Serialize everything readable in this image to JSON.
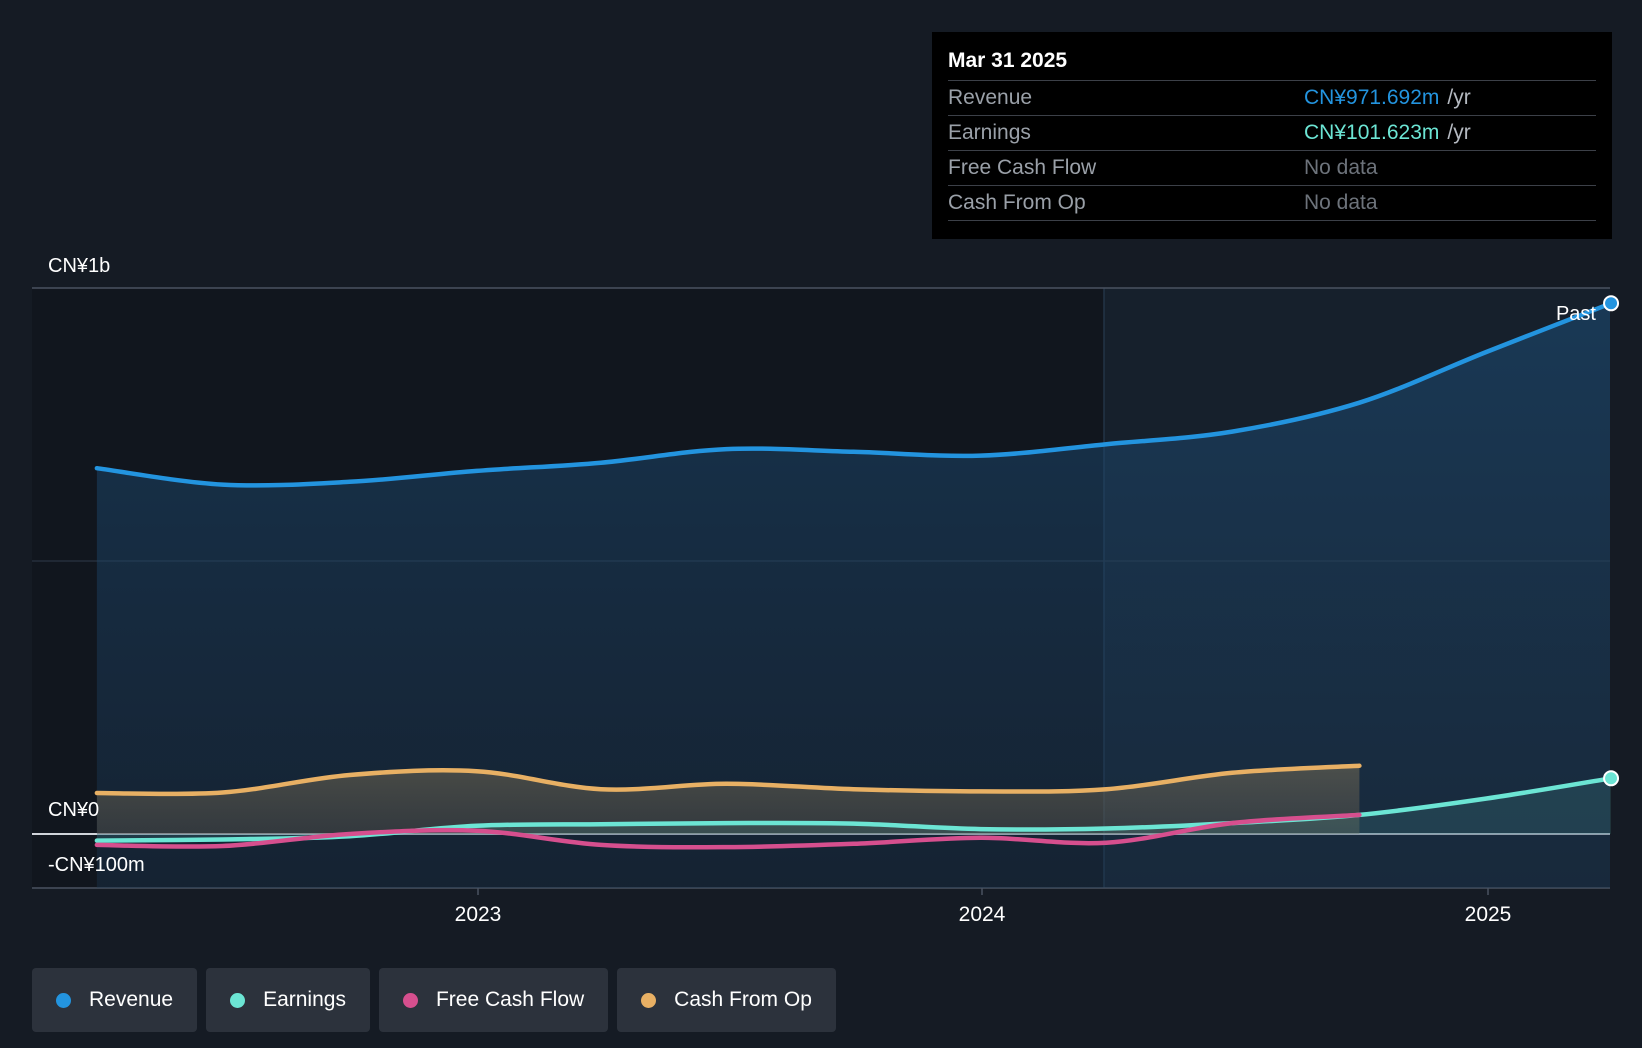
{
  "tooltip": {
    "date": "Mar 31 2025",
    "rows": [
      {
        "name": "Revenue",
        "value": "CN¥971.692m",
        "unit": "/yr",
        "color": "#2394df"
      },
      {
        "name": "Earnings",
        "value": "CN¥101.623m",
        "unit": "/yr",
        "color": "#6ce5d4"
      },
      {
        "name": "Free Cash Flow",
        "value": "No data",
        "unit": ""
      },
      {
        "name": "Cash From Op",
        "value": "No data",
        "unit": ""
      }
    ]
  },
  "legend": [
    {
      "label": "Revenue",
      "color": "#2394df"
    },
    {
      "label": "Earnings",
      "color": "#6ce5d4"
    },
    {
      "label": "Free Cash Flow",
      "color": "#d64f8e"
    },
    {
      "label": "Cash From Op",
      "color": "#e8b064"
    }
  ],
  "chart_data": {
    "type": "line",
    "y_axis_labels": [
      "CN¥1b",
      "CN¥0",
      "-CN¥100m"
    ],
    "x_tick_labels": [
      "2023",
      "2024",
      "2025"
    ],
    "past_label": "Past",
    "ylim": [
      -100,
      1000
    ],
    "y_unit": "CN¥m",
    "grid": true,
    "legend_position": "bottom",
    "series": [
      {
        "name": "Revenue",
        "color": "#2394df",
        "points": [
          [
            "2022-03-31",
            670
          ],
          [
            "2022-06-30",
            640
          ],
          [
            "2022-09-30",
            645
          ],
          [
            "2022-12-31",
            665
          ],
          [
            "2023-03-31",
            680
          ],
          [
            "2023-06-30",
            705
          ],
          [
            "2023-09-30",
            700
          ],
          [
            "2023-12-31",
            693
          ],
          [
            "2024-03-31",
            714
          ],
          [
            "2024-06-30",
            737
          ],
          [
            "2024-09-30",
            790
          ],
          [
            "2024-12-31",
            883
          ],
          [
            "2025-03-31",
            972
          ]
        ]
      },
      {
        "name": "Earnings",
        "color": "#6ce5d4",
        "points": [
          [
            "2022-03-31",
            -12
          ],
          [
            "2022-06-30",
            -10
          ],
          [
            "2022-09-30",
            -4
          ],
          [
            "2022-12-31",
            15
          ],
          [
            "2023-03-31",
            18
          ],
          [
            "2023-06-30",
            20
          ],
          [
            "2023-09-30",
            19
          ],
          [
            "2023-12-31",
            9
          ],
          [
            "2024-03-31",
            10
          ],
          [
            "2024-06-30",
            20
          ],
          [
            "2024-09-30",
            35
          ],
          [
            "2024-12-31",
            65
          ],
          [
            "2025-03-31",
            102
          ]
        ]
      },
      {
        "name": "Free Cash Flow",
        "color": "#d64f8e",
        "points": [
          [
            "2022-03-31",
            -20
          ],
          [
            "2022-06-30",
            -22
          ],
          [
            "2022-09-30",
            0
          ],
          [
            "2022-12-31",
            6
          ],
          [
            "2023-03-31",
            -20
          ],
          [
            "2023-06-30",
            -24
          ],
          [
            "2023-09-30",
            -18
          ],
          [
            "2023-12-31",
            -7
          ],
          [
            "2024-03-31",
            -16
          ],
          [
            "2024-06-30",
            20
          ],
          [
            "2024-09-30",
            35
          ]
        ]
      },
      {
        "name": "Cash From Op",
        "color": "#e8b064",
        "points": [
          [
            "2022-03-31",
            75
          ],
          [
            "2022-06-30",
            76
          ],
          [
            "2022-09-30",
            108
          ],
          [
            "2022-12-31",
            115
          ],
          [
            "2023-03-31",
            82
          ],
          [
            "2023-06-30",
            92
          ],
          [
            "2023-09-30",
            82
          ],
          [
            "2023-12-31",
            78
          ],
          [
            "2024-03-31",
            82
          ],
          [
            "2024-06-30",
            112
          ],
          [
            "2024-09-30",
            125
          ]
        ]
      }
    ]
  }
}
